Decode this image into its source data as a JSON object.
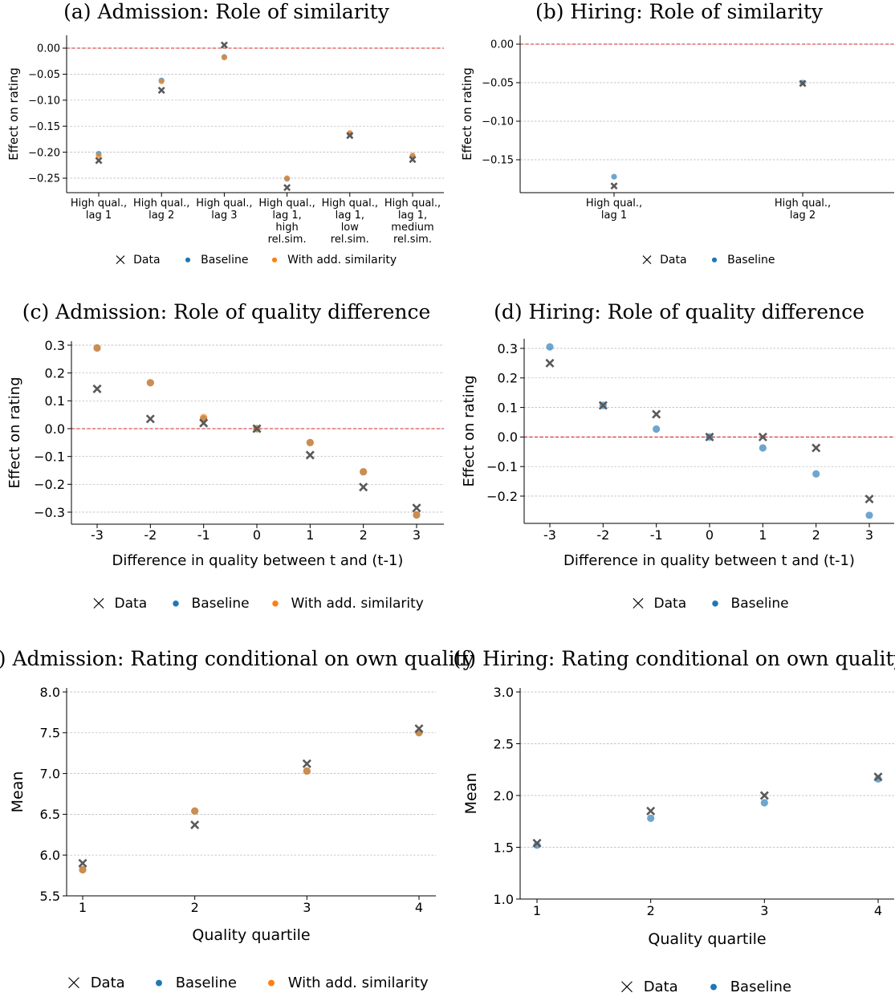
{
  "colors": {
    "data": "#595959",
    "baseline": "#1f77b4",
    "with_sim": "#ff7f0e",
    "zero_line": "#d62728",
    "grid": "#b0b0b0"
  },
  "chart_data": [
    {
      "type": "scatter",
      "title": "(a) Admission: Role of similarity",
      "xlabel": "",
      "ylabel": "Effect on rating",
      "categories": [
        "High qual.,\nlag 1",
        "High qual.,\nlag 2",
        "High qual.,\nlag 3",
        "High qual.,\nlag 1,\nhigh\nrel.sim.",
        "High qual.,\nlag 1,\nlow\nrel.sim.",
        "High qual.,\nlag 1,\nmedium\nrel.sim."
      ],
      "yticks": [
        "0.00",
        "−0.05",
        "−0.10",
        "−0.15",
        "−0.20",
        "−0.25"
      ],
      "ylim": [
        -0.28,
        0.02
      ],
      "zero_line": true,
      "grid": "horizontal",
      "series": [
        {
          "name": "Data",
          "marker": "x",
          "values": [
            -0.216,
            -0.081,
            0.006,
            -0.268,
            -0.168,
            -0.214
          ]
        },
        {
          "name": "Baseline",
          "marker": "o",
          "values": [
            -0.203,
            -0.062,
            -0.017,
            -0.251,
            -0.165,
            -0.208
          ]
        },
        {
          "name": "With add. similarity",
          "marker": "o",
          "values": [
            -0.207,
            -0.064,
            -0.018,
            -0.25,
            -0.163,
            -0.206
          ]
        }
      ],
      "legend": [
        "Data",
        "Baseline",
        "With add. similarity"
      ],
      "legend_placement": "bottom"
    },
    {
      "type": "scatter",
      "title": "(b) Hiring: Role of similarity",
      "xlabel": "",
      "ylabel": "Effect on rating",
      "categories": [
        "High qual.,\nlag 1",
        "High qual.,\nlag 2"
      ],
      "yticks": [
        "0.00",
        "−0.05",
        "−0.10",
        "−0.15"
      ],
      "ylim": [
        -0.19,
        0.01
      ],
      "zero_line": true,
      "grid": "horizontal",
      "series": [
        {
          "name": "Data",
          "marker": "x",
          "values": [
            -0.184,
            -0.051
          ]
        },
        {
          "name": "Baseline",
          "marker": "o",
          "values": [
            -0.172,
            -0.05
          ]
        }
      ],
      "legend": [
        "Data",
        "Baseline"
      ],
      "legend_placement": "bottom"
    },
    {
      "type": "scatter",
      "title": "(c) Admission: Role of quality difference",
      "xlabel": "Difference in quality between t and (t-1)",
      "ylabel": "Effect on rating",
      "categories": [
        "-3",
        "-2",
        "-1",
        "0",
        "1",
        "2",
        "3"
      ],
      "yticks": [
        "0.3",
        "0.2",
        "0.1",
        "0.0",
        "−0.1",
        "−0.2",
        "−0.3"
      ],
      "ylim": [
        -0.34,
        0.32
      ],
      "zero_line": true,
      "grid": "horizontal",
      "series": [
        {
          "name": "Data",
          "marker": "x",
          "values": [
            0.143,
            0.035,
            0.02,
            0.0,
            -0.095,
            -0.21,
            -0.285
          ]
        },
        {
          "name": "Baseline",
          "marker": "o",
          "values": [
            0.29,
            0.165,
            0.035,
            0.0,
            -0.05,
            -0.155,
            -0.31
          ]
        },
        {
          "name": "With add. similarity",
          "marker": "o",
          "values": [
            0.29,
            0.165,
            0.04,
            0.0,
            -0.05,
            -0.155,
            -0.31
          ]
        }
      ],
      "legend": [
        "Data",
        "Baseline",
        "With add. similarity"
      ],
      "legend_placement": "bottom"
    },
    {
      "type": "scatter",
      "title": "(d) Hiring: Role of quality difference",
      "xlabel": "Difference in quality between t and (t-1)",
      "ylabel": "Effect on rating",
      "categories": [
        "-3",
        "-2",
        "-1",
        "0",
        "1",
        "2",
        "3"
      ],
      "yticks": [
        "0.3",
        "0.2",
        "0.1",
        "0.0",
        "−0.1",
        "−0.2"
      ],
      "ylim": [
        -0.29,
        0.33
      ],
      "zero_line": true,
      "grid": "horizontal",
      "series": [
        {
          "name": "Data",
          "marker": "x",
          "values": [
            0.25,
            0.107,
            0.077,
            0.0,
            0.0,
            -0.037,
            -0.21
          ]
        },
        {
          "name": "Baseline",
          "marker": "o",
          "values": [
            0.305,
            0.107,
            0.027,
            0.0,
            -0.037,
            -0.125,
            -0.265
          ]
        }
      ],
      "legend": [
        "Data",
        "Baseline"
      ],
      "legend_placement": "bottom"
    },
    {
      "type": "scatter",
      "title": "(e) Admission: Rating conditional on own quality",
      "xlabel": "Quality quartile",
      "ylabel": "Mean",
      "categories": [
        "1",
        "2",
        "3",
        "4"
      ],
      "yticks": [
        "8.0",
        "7.5",
        "7.0",
        "6.5",
        "6.0",
        "5.5"
      ],
      "ylim": [
        5.5,
        8.0
      ],
      "zero_line": false,
      "grid": "horizontal",
      "series": [
        {
          "name": "Data",
          "marker": "x",
          "values": [
            5.9,
            6.37,
            7.12,
            7.55
          ]
        },
        {
          "name": "Baseline",
          "marker": "o",
          "values": [
            5.82,
            6.54,
            7.03,
            7.5
          ]
        },
        {
          "name": "With add. similarity",
          "marker": "o",
          "values": [
            5.82,
            6.54,
            7.03,
            7.5
          ]
        }
      ],
      "legend": [
        "Data",
        "Baseline",
        "With add. similarity"
      ],
      "legend_placement": "bottom"
    },
    {
      "type": "scatter",
      "title": "(f) Hiring: Rating conditional on own quality",
      "xlabel": "Quality quartile",
      "ylabel": "Mean",
      "categories": [
        "1",
        "2",
        "3",
        "4"
      ],
      "yticks": [
        "3.0",
        "2.5",
        "2.0",
        "1.5",
        "1.0"
      ],
      "ylim": [
        1.0,
        3.0
      ],
      "zero_line": false,
      "grid": "horizontal",
      "series": [
        {
          "name": "Data",
          "marker": "x",
          "values": [
            1.54,
            1.85,
            2.0,
            2.18
          ]
        },
        {
          "name": "Baseline",
          "marker": "o",
          "values": [
            1.52,
            1.78,
            1.93,
            2.16
          ]
        }
      ],
      "legend": [
        "Data",
        "Baseline"
      ],
      "legend_placement": "bottom"
    }
  ]
}
